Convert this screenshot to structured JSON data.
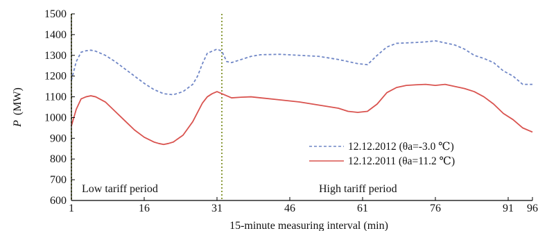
{
  "chart_data": {
    "type": "line",
    "title": "",
    "xlabel": "15-minute measuring interval (min)",
    "ylabel_symbol": "P",
    "ylabel_unit": "(MW)",
    "xlim": [
      1,
      96
    ],
    "ylim": [
      600,
      1500
    ],
    "x_ticks": [
      1,
      16,
      31,
      46,
      61,
      76,
      91,
      96
    ],
    "y_ticks": [
      600,
      700,
      800,
      900,
      1000,
      1100,
      1200,
      1300,
      1400,
      1500
    ],
    "grid": false,
    "legend_position": "bottom-right",
    "legend": {
      "series_1_label": "12.12.2012 (θa=-3.0 ℃)",
      "series_2_label": "12.12.2011 (θa=11.2 ℃)"
    },
    "annotations": {
      "left_region": "Low tariff period",
      "right_region": "High tariff period"
    },
    "vertical_markers": [
      1,
      32
    ],
    "series": [
      {
        "name": "12.12.2012 (θa=-3.0 ℃)",
        "color": "#6f86c6",
        "dash": "dashed",
        "x": [
          1,
          2,
          3,
          4,
          5,
          6,
          8,
          10,
          12,
          14,
          16,
          18,
          20,
          22,
          24,
          26,
          27,
          28,
          29,
          30,
          31,
          32,
          33,
          34,
          36,
          38,
          40,
          44,
          48,
          52,
          56,
          60,
          62,
          64,
          66,
          68,
          70,
          72,
          74,
          76,
          78,
          80,
          82,
          84,
          86,
          88,
          90,
          92,
          94,
          96
        ],
        "values": [
          1180,
          1270,
          1315,
          1322,
          1325,
          1320,
          1300,
          1270,
          1235,
          1200,
          1165,
          1135,
          1115,
          1110,
          1125,
          1160,
          1200,
          1260,
          1310,
          1320,
          1330,
          1320,
          1270,
          1265,
          1280,
          1295,
          1303,
          1305,
          1300,
          1295,
          1280,
          1260,
          1255,
          1300,
          1340,
          1358,
          1360,
          1362,
          1365,
          1370,
          1360,
          1350,
          1330,
          1300,
          1285,
          1265,
          1225,
          1200,
          1160,
          1160
        ]
      },
      {
        "name": "12.12.2011 (θa=11.2 ℃)",
        "color": "#d9534f",
        "dash": "solid",
        "x": [
          1,
          2,
          3,
          4,
          5,
          6,
          8,
          10,
          12,
          14,
          16,
          18,
          19,
          20,
          21,
          22,
          24,
          26,
          28,
          29,
          30,
          31,
          32,
          33,
          34,
          36,
          38,
          40,
          44,
          48,
          52,
          56,
          58,
          60,
          62,
          64,
          66,
          68,
          70,
          72,
          74,
          76,
          78,
          80,
          82,
          84,
          86,
          88,
          90,
          92,
          94,
          96
        ],
        "values": [
          960,
          1040,
          1090,
          1100,
          1105,
          1100,
          1075,
          1030,
          985,
          940,
          905,
          882,
          875,
          870,
          875,
          882,
          915,
          980,
          1070,
          1100,
          1115,
          1125,
          1115,
          1105,
          1095,
          1098,
          1100,
          1095,
          1085,
          1075,
          1060,
          1045,
          1030,
          1025,
          1030,
          1065,
          1120,
          1145,
          1155,
          1158,
          1160,
          1155,
          1160,
          1150,
          1140,
          1125,
          1100,
          1065,
          1020,
          990,
          950,
          930
        ]
      }
    ]
  }
}
